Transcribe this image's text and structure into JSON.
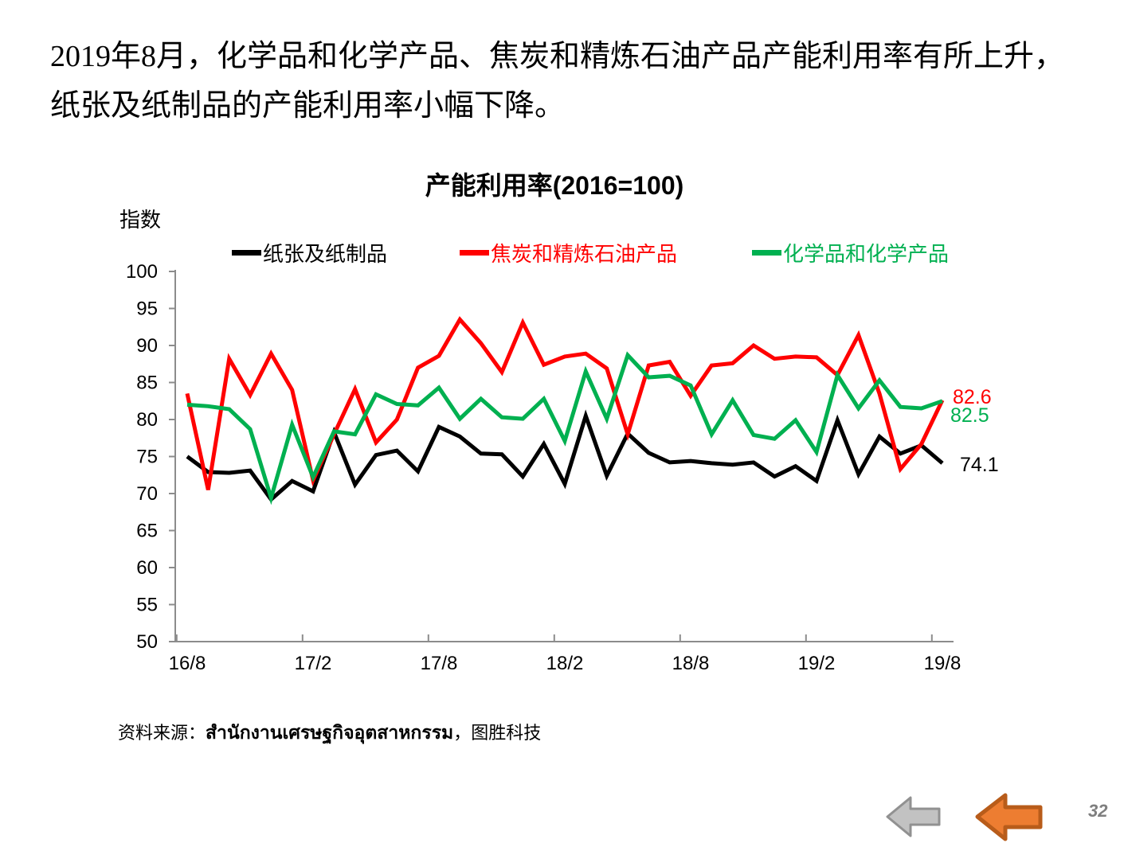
{
  "page": {
    "heading_line1": "2019年8月，化学品和化学产品、焦炭和精炼石油产品产能利用率有所上升，",
    "heading_line2": "纸张及纸制品的产能利用率小幅下降。",
    "page_number": "32"
  },
  "source": {
    "prefix": "资料来源：",
    "thai": "สำนักงานเศรษฐกิจอุตสาหกรรม",
    "suffix": "，图胜科技"
  },
  "icons": {
    "back_arrow_gray": "left-arrow",
    "back_arrow_orange": "left-arrow"
  },
  "colors": {
    "axis_gray": "#8C8C8C",
    "arrow_gray_fill": "#C2C2C2",
    "arrow_gray_stroke": "#919191",
    "arrow_orange_fill": "#ED7D31",
    "arrow_orange_stroke": "#B85C1A",
    "page_number_gray": "#7F7F7F"
  },
  "chart_data": {
    "type": "line",
    "title": "产能利用率(2016=100)",
    "y_axis_label": "指数",
    "ylim": [
      50,
      100
    ],
    "ytick_step": 5,
    "yticks": [
      100,
      95,
      90,
      85,
      80,
      75,
      70,
      65,
      60,
      55,
      50
    ],
    "x_tick_labels": [
      "16/8",
      "17/2",
      "17/8",
      "18/2",
      "18/8",
      "19/2",
      "19/8"
    ],
    "x_tick_month_indices": [
      0,
      6,
      12,
      18,
      24,
      30,
      36
    ],
    "x_unit": "month",
    "n_points": 37,
    "grid": false,
    "legend_position": "top",
    "series": [
      {
        "name": "纸张及纸制品",
        "color": "#000000",
        "values": [
          75.0,
          72.9,
          72.8,
          73.1,
          69.2,
          71.7,
          70.3,
          78.3,
          71.2,
          75.2,
          75.8,
          73.0,
          79.0,
          77.7,
          75.4,
          75.3,
          72.3,
          76.7,
          71.3,
          80.5,
          72.4,
          78.1,
          75.5,
          74.2,
          74.4,
          74.1,
          73.9,
          74.2,
          72.3,
          73.7,
          71.7,
          79.9,
          72.6,
          77.7,
          75.4,
          76.5,
          74.1
        ]
      },
      {
        "name": "焦炭和精炼石油产品",
        "color": "#FF0000",
        "values": [
          83.5,
          70.5,
          88.2,
          83.3,
          88.9,
          84.0,
          71.8,
          78.0,
          84.1,
          76.9,
          80.0,
          87.0,
          88.6,
          93.5,
          90.3,
          86.4,
          93.1,
          87.4,
          88.5,
          88.9,
          86.9,
          78.0,
          87.3,
          87.8,
          83.2,
          87.3,
          87.6,
          90.0,
          88.2,
          88.5,
          88.4,
          86.0,
          91.4,
          83.5,
          73.3,
          76.7,
          82.6
        ]
      },
      {
        "name": "化学品和化学产品",
        "color": "#00B050",
        "values": [
          82.0,
          81.8,
          81.4,
          78.7,
          69.4,
          79.3,
          72.2,
          78.4,
          78.0,
          83.4,
          82.1,
          81.9,
          84.3,
          80.1,
          82.8,
          80.3,
          80.1,
          82.8,
          77.1,
          86.5,
          80.1,
          88.7,
          85.7,
          85.9,
          84.6,
          78.0,
          82.6,
          77.9,
          77.4,
          79.9,
          75.6,
          86.0,
          81.5,
          85.3,
          81.7,
          81.5,
          82.5
        ]
      }
    ],
    "end_labels": [
      {
        "text": "82.6",
        "value": 82.6,
        "color": "#FF0000"
      },
      {
        "text": "82.5",
        "value": 82.5,
        "color": "#00B050"
      },
      {
        "text": "74.1",
        "value": 74.1,
        "color": "#000000"
      }
    ]
  }
}
